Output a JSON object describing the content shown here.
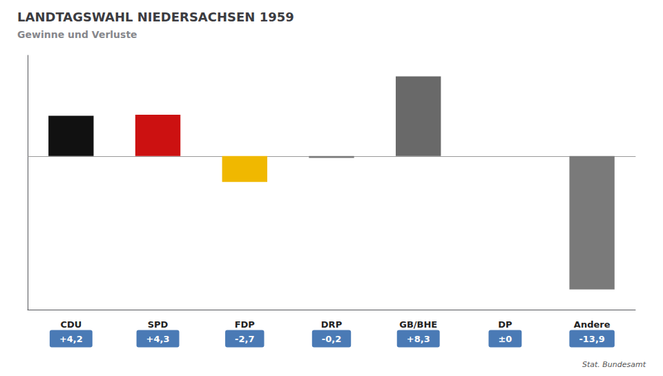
{
  "chart_data": {
    "type": "bar",
    "title": "LANDTAGSWAHL NIEDERSACHSEN 1959",
    "subtitle": "Gewinne und Verluste",
    "source": "Stat. Bundesamt",
    "categories": [
      "CDU",
      "SPD",
      "FDP",
      "DRP",
      "GB/BHE",
      "DP",
      "Andere"
    ],
    "values": [
      4.2,
      4.3,
      -2.7,
      -0.2,
      8.3,
      0.0,
      -13.9
    ],
    "value_labels": [
      "+4,2",
      "+4,3",
      "-2,7",
      "-0,2",
      "+8,3",
      "±0",
      "-13,9"
    ],
    "colors": [
      "#111111",
      "#cc1111",
      "#f0b800",
      "#7a7a7a",
      "#696969",
      "#7a7a7a",
      "#7a7a7a"
    ],
    "ylim": [
      -16.0,
      10.5
    ],
    "tick_labels": "x",
    "grid": false
  }
}
